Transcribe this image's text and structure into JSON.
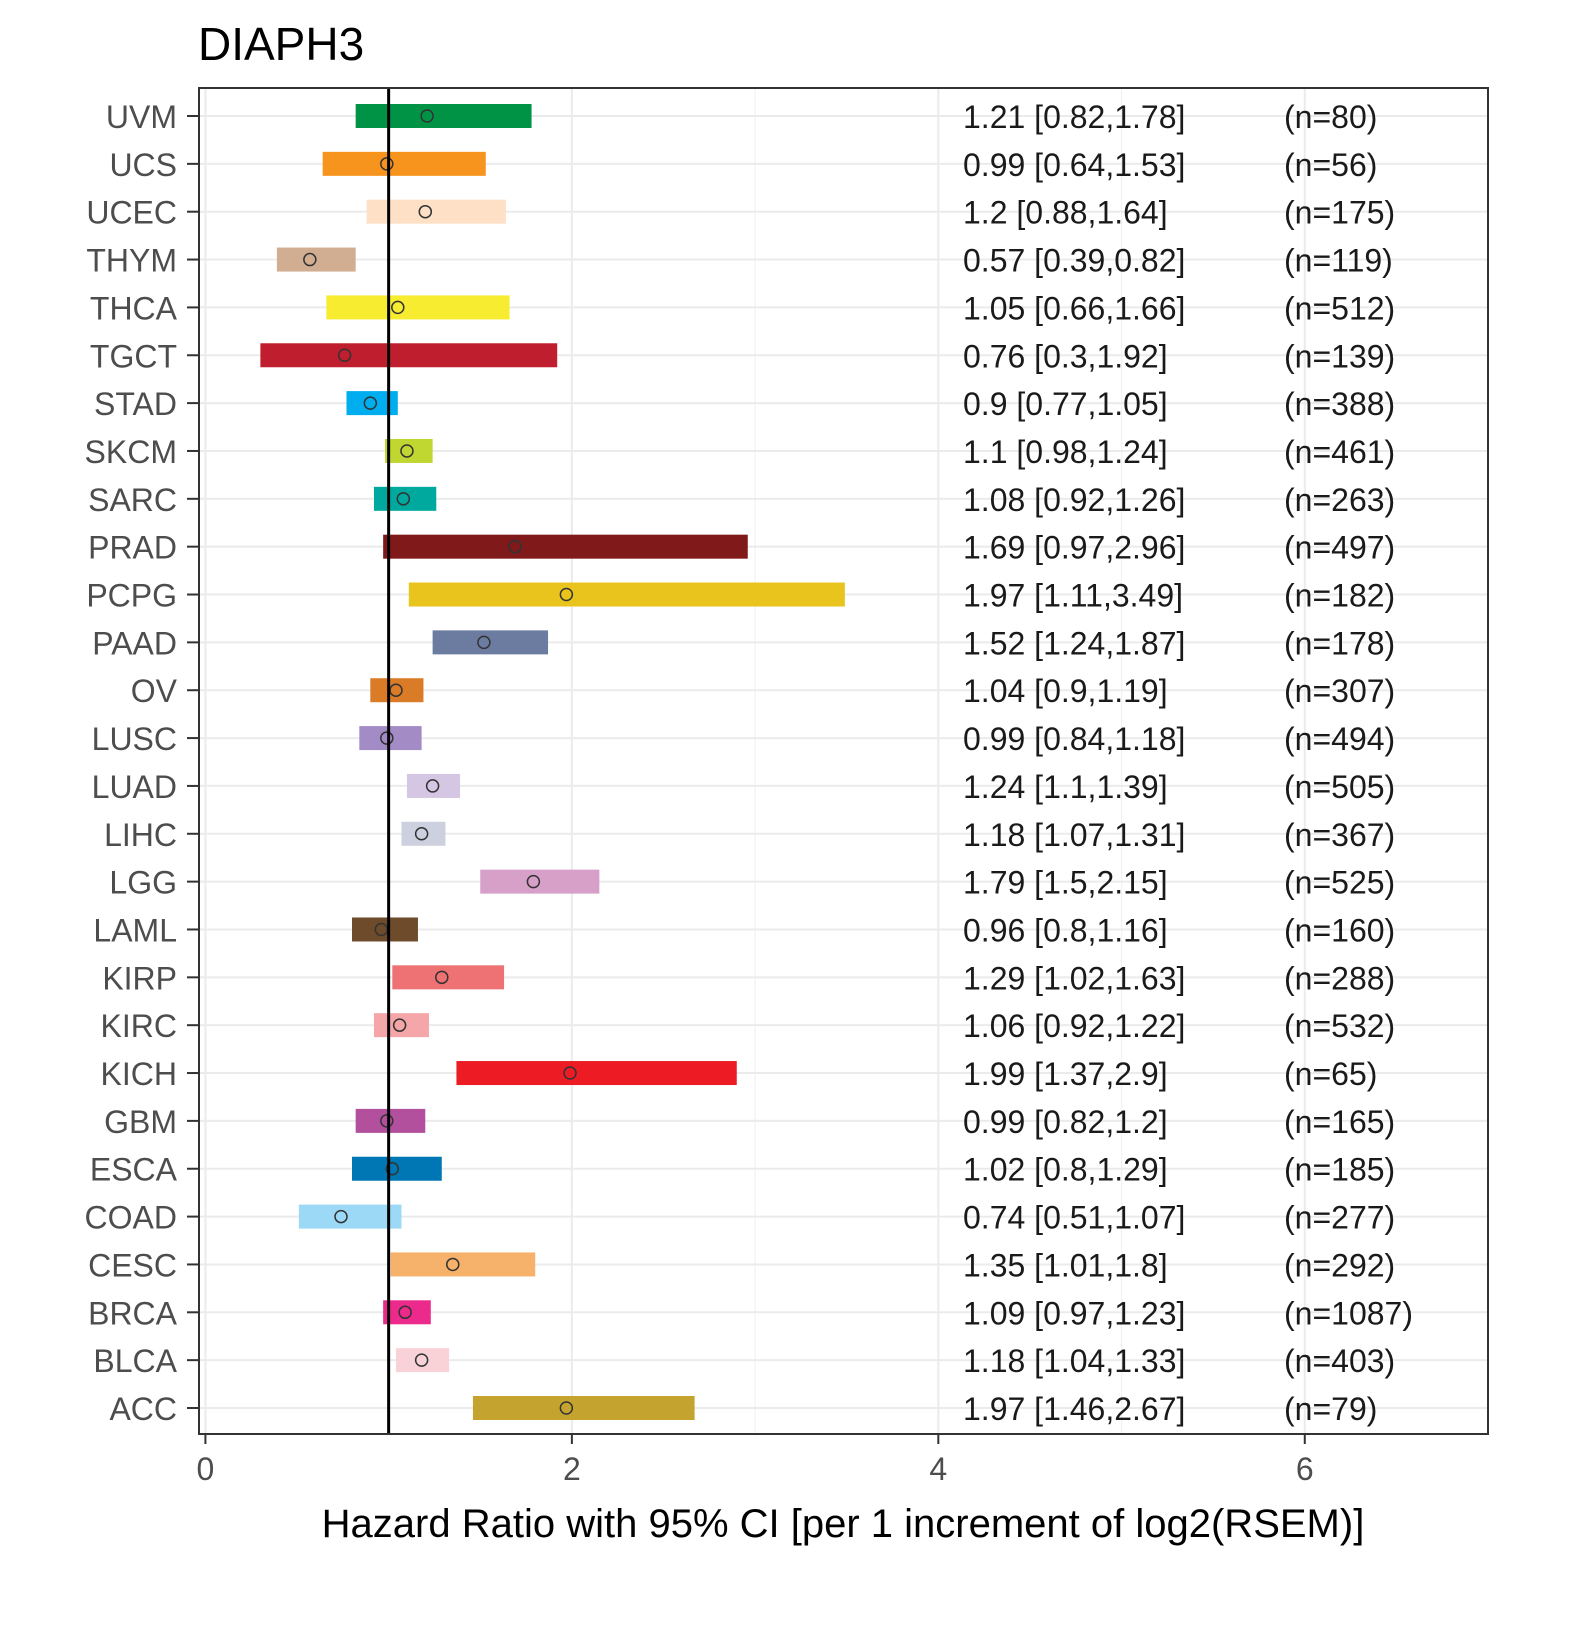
{
  "chart_data": {
    "type": "forest",
    "title": "DIAPH3",
    "xlabel": "Hazard Ratio with 95% CI [per 1 increment of log2(RSEM)]",
    "ylabel": "",
    "xlim": [
      -0.035,
      7.0
    ],
    "xticks": [
      0,
      2,
      4,
      6
    ],
    "xtick_labels": [
      "0",
      "2",
      "4",
      "6"
    ],
    "reference_line": 1,
    "grid": true,
    "rows": [
      {
        "label": "UVM",
        "hr": 1.21,
        "lo": 0.82,
        "hi": 1.78,
        "text": "1.21 [0.82,1.78]",
        "n": "(n=80)",
        "color": "#009245"
      },
      {
        "label": "UCS",
        "hr": 0.99,
        "lo": 0.64,
        "hi": 1.53,
        "text": "0.99 [0.64,1.53]",
        "n": "(n=56)",
        "color": "#F7941D"
      },
      {
        "label": "UCEC",
        "hr": 1.2,
        "lo": 0.88,
        "hi": 1.64,
        "text": "1.2 [0.88,1.64]",
        "n": "(n=175)",
        "color": "#FDE0C5"
      },
      {
        "label": "THYM",
        "hr": 0.57,
        "lo": 0.39,
        "hi": 0.82,
        "text": "0.57 [0.39,0.82]",
        "n": "(n=119)",
        "color": "#D1AE91"
      },
      {
        "label": "THCA",
        "hr": 1.05,
        "lo": 0.66,
        "hi": 1.66,
        "text": "1.05 [0.66,1.66]",
        "n": "(n=512)",
        "color": "#F8EC31"
      },
      {
        "label": "TGCT",
        "hr": 0.76,
        "lo": 0.3,
        "hi": 1.92,
        "text": "0.76 [0.3,1.92]",
        "n": "(n=139)",
        "color": "#BE1E2D"
      },
      {
        "label": "STAD",
        "hr": 0.9,
        "lo": 0.77,
        "hi": 1.05,
        "text": "0.9 [0.77,1.05]",
        "n": "(n=388)",
        "color": "#00AEEF"
      },
      {
        "label": "SKCM",
        "hr": 1.1,
        "lo": 0.98,
        "hi": 1.24,
        "text": "1.1 [0.98,1.24]",
        "n": "(n=461)",
        "color": "#BFD730"
      },
      {
        "label": "SARC",
        "hr": 1.08,
        "lo": 0.92,
        "hi": 1.26,
        "text": "1.08 [0.92,1.26]",
        "n": "(n=263)",
        "color": "#00A99D"
      },
      {
        "label": "PRAD",
        "hr": 1.69,
        "lo": 0.97,
        "hi": 2.96,
        "text": "1.69 [0.97,2.96]",
        "n": "(n=497)",
        "color": "#801A1A"
      },
      {
        "label": "PCPG",
        "hr": 1.97,
        "lo": 1.11,
        "hi": 3.49,
        "text": "1.97 [1.11,3.49]",
        "n": "(n=182)",
        "color": "#E8C41C"
      },
      {
        "label": "PAAD",
        "hr": 1.52,
        "lo": 1.24,
        "hi": 1.87,
        "text": "1.52 [1.24,1.87]",
        "n": "(n=178)",
        "color": "#6C7BA0"
      },
      {
        "label": "OV",
        "hr": 1.04,
        "lo": 0.9,
        "hi": 1.19,
        "text": "1.04 [0.9,1.19]",
        "n": "(n=307)",
        "color": "#D97B27"
      },
      {
        "label": "LUSC",
        "hr": 0.99,
        "lo": 0.84,
        "hi": 1.18,
        "text": "0.99 [0.84,1.18]",
        "n": "(n=494)",
        "color": "#A38CC6"
      },
      {
        "label": "LUAD",
        "hr": 1.24,
        "lo": 1.1,
        "hi": 1.39,
        "text": "1.24 [1.1,1.39]",
        "n": "(n=505)",
        "color": "#D5C6E3"
      },
      {
        "label": "LIHC",
        "hr": 1.18,
        "lo": 1.07,
        "hi": 1.31,
        "text": "1.18 [1.07,1.31]",
        "n": "(n=367)",
        "color": "#CDD0DF"
      },
      {
        "label": "LGG",
        "hr": 1.79,
        "lo": 1.5,
        "hi": 2.15,
        "text": "1.79 [1.5,2.15]",
        "n": "(n=525)",
        "color": "#D6A0C9"
      },
      {
        "label": "LAML",
        "hr": 0.96,
        "lo": 0.8,
        "hi": 1.16,
        "text": "0.96 [0.8,1.16]",
        "n": "(n=160)",
        "color": "#6E4B2A"
      },
      {
        "label": "KIRP",
        "hr": 1.29,
        "lo": 1.02,
        "hi": 1.63,
        "text": "1.29 [1.02,1.63]",
        "n": "(n=288)",
        "color": "#EE7173"
      },
      {
        "label": "KIRC",
        "hr": 1.06,
        "lo": 0.92,
        "hi": 1.22,
        "text": "1.06 [0.92,1.22]",
        "n": "(n=532)",
        "color": "#F4A6A8"
      },
      {
        "label": "KICH",
        "hr": 1.99,
        "lo": 1.37,
        "hi": 2.9,
        "text": "1.99 [1.37,2.9]",
        "n": "(n=65)",
        "color": "#ED1C24"
      },
      {
        "label": "GBM",
        "hr": 0.99,
        "lo": 0.82,
        "hi": 1.2,
        "text": "0.99 [0.82,1.2]",
        "n": "(n=165)",
        "color": "#B2509E"
      },
      {
        "label": "ESCA",
        "hr": 1.02,
        "lo": 0.8,
        "hi": 1.29,
        "text": "1.02 [0.8,1.29]",
        "n": "(n=185)",
        "color": "#0077B5"
      },
      {
        "label": "COAD",
        "hr": 0.74,
        "lo": 0.51,
        "hi": 1.07,
        "text": "0.74 [0.51,1.07]",
        "n": "(n=277)",
        "color": "#9CD9F7"
      },
      {
        "label": "CESC",
        "hr": 1.35,
        "lo": 1.01,
        "hi": 1.8,
        "text": "1.35 [1.01,1.8]",
        "n": "(n=292)",
        "color": "#F6B26B"
      },
      {
        "label": "BRCA",
        "hr": 1.09,
        "lo": 0.97,
        "hi": 1.23,
        "text": "1.09 [0.97,1.23]",
        "n": "(n=1087)",
        "color": "#EC2A8C"
      },
      {
        "label": "BLCA",
        "hr": 1.18,
        "lo": 1.04,
        "hi": 1.33,
        "text": "1.18 [1.04,1.33]",
        "n": "(n=403)",
        "color": "#F9D2D8"
      },
      {
        "label": "ACC",
        "hr": 1.97,
        "lo": 1.46,
        "hi": 2.67,
        "text": "1.97 [1.46,2.67]",
        "n": "(n=79)",
        "color": "#C4A42E"
      }
    ]
  }
}
